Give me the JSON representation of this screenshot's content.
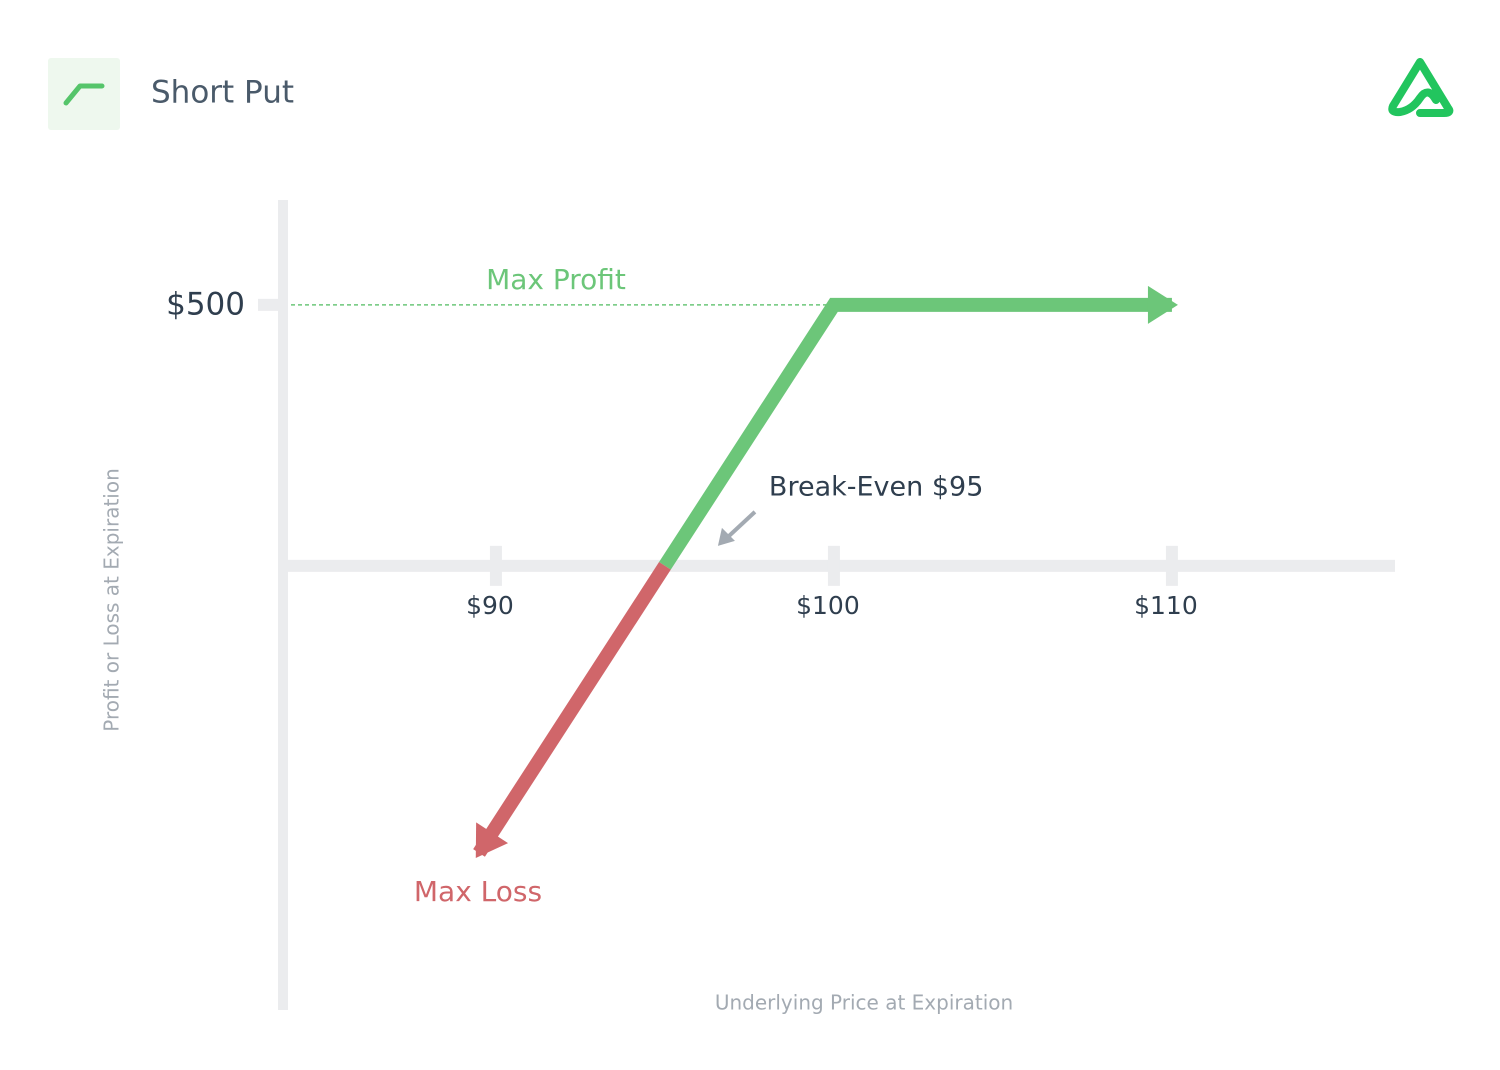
{
  "chart_data": {
    "type": "line",
    "title": "Short Put",
    "x_label": "Underlying Price at Expiration",
    "y_label": "Profit or Loss at Expiration",
    "xlim": [
      83.7,
      116.6
    ],
    "ylim": [
      -851,
      701
    ],
    "xticks": [
      {
        "value": 90,
        "label": "$90"
      },
      {
        "value": 100,
        "label": "$100"
      },
      {
        "value": 110,
        "label": "$110"
      }
    ],
    "yticks": [
      {
        "value": 500,
        "label": "$500"
      }
    ],
    "series": [
      {
        "name": "Max Profit",
        "color": "#6cc679",
        "x": [
          95,
          100,
          110
        ],
        "values": [
          0,
          500,
          500
        ]
      },
      {
        "name": "Max Loss",
        "color": "#d0666a",
        "x": [
          95,
          89.5
        ],
        "values": [
          0,
          -550
        ]
      }
    ],
    "annotations": [
      {
        "text": "Break-Even $95",
        "x": 95,
        "y": 0
      }
    ]
  }
}
